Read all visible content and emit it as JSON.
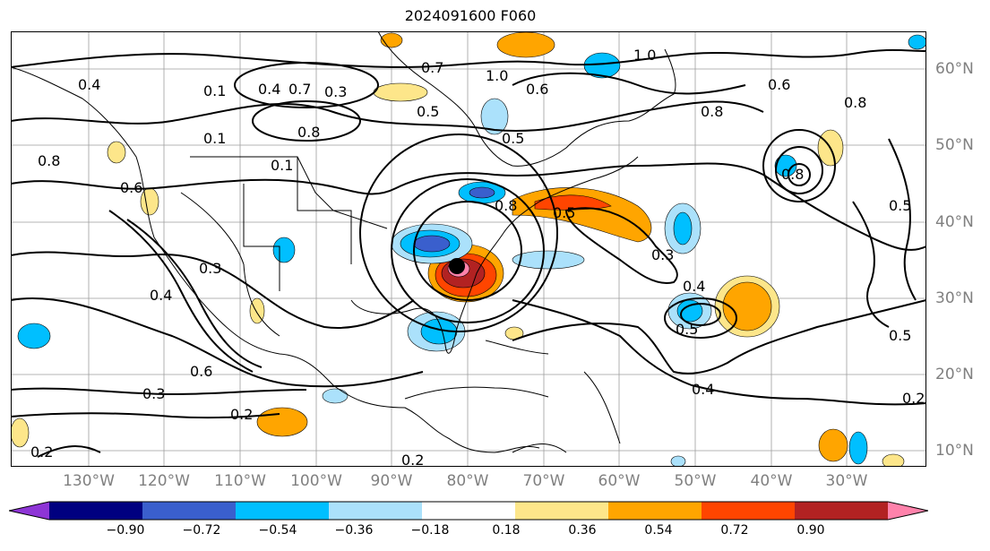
{
  "title": "2024091600 F060",
  "lon_labels": [
    "130°W",
    "120°W",
    "110°W",
    "100°W",
    "90°W",
    "80°W",
    "70°W",
    "60°W",
    "50°W",
    "40°W",
    "30°W"
  ],
  "lat_labels": [
    "60°N",
    "50°N",
    "40°N",
    "30°N",
    "20°N",
    "10°N"
  ],
  "colorbar": {
    "ticks": [
      "−0.90",
      "−0.72",
      "−0.54",
      "−0.36",
      "−0.18",
      "0.18",
      "0.36",
      "0.54",
      "0.72",
      "0.90"
    ],
    "colors": [
      "#8e35d6",
      "#000080",
      "#3a5fcd",
      "#00bfff",
      "#abe1fb",
      "#ffffff",
      "#fde68a",
      "#ffa500",
      "#ff4500",
      "#b22222",
      "#ff82ab"
    ]
  },
  "contour_labels": [
    "1.0",
    "0.7",
    "1.0",
    "0.4",
    "0.1",
    "0.4",
    "0.7",
    "0.3",
    "0.5",
    "0.5",
    "0.6",
    "0.8",
    "0.1",
    "0.8",
    "0.1",
    "0.5",
    "0.8",
    "0.6",
    "0.3",
    "0.6",
    "0.3",
    "0.2",
    "0.2",
    "0.2",
    "0.5",
    "0.4",
    "0.5",
    "0.4",
    "0.3",
    "0.8",
    "0.6",
    "0.8",
    "0.5",
    "0.2",
    "0.8",
    "0.4"
  ],
  "colors": {
    "land_line": "#000000",
    "grid": "#9e9e9e",
    "contour": "#000000",
    "storm_marker": "#000000"
  }
}
